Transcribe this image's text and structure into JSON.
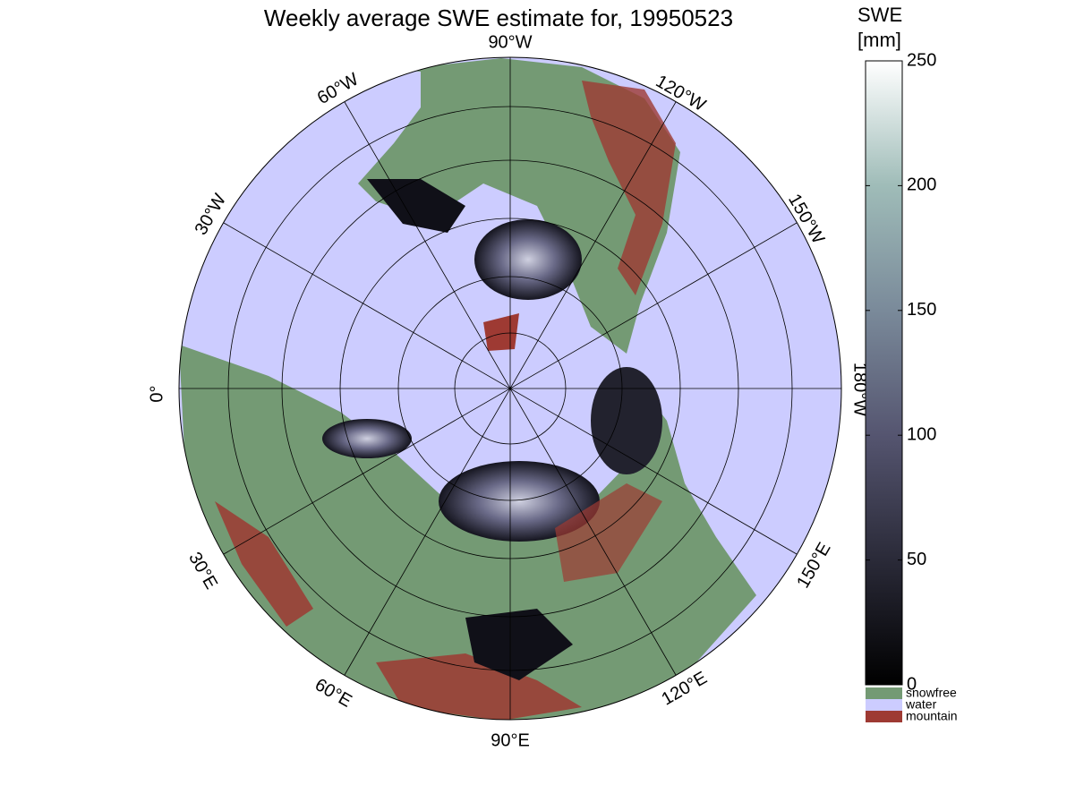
{
  "title": "Weekly average SWE estimate for, 19950523",
  "longitude_labels": [
    "90°W",
    "120°W",
    "150°W",
    "180°W",
    "150°E",
    "120°E",
    "90°E",
    "60°E",
    "30°E",
    "0°",
    "30°W",
    "60°W"
  ],
  "colorbar": {
    "title": [
      "SWE",
      "[mm]"
    ],
    "lim": [
      0,
      250
    ],
    "ticks": [
      0,
      50,
      100,
      150,
      200,
      250
    ],
    "colors": [
      "#000000",
      "#2a2a38",
      "#555570",
      "#7a8a9a",
      "#9fbcb8",
      "#ffffff"
    ]
  },
  "legend": [
    {
      "label": "snowfree",
      "color": "#749a74"
    },
    {
      "label": "water",
      "color": "#ccccff"
    },
    {
      "label": "mountain",
      "color": "#9e3a33"
    }
  ]
}
